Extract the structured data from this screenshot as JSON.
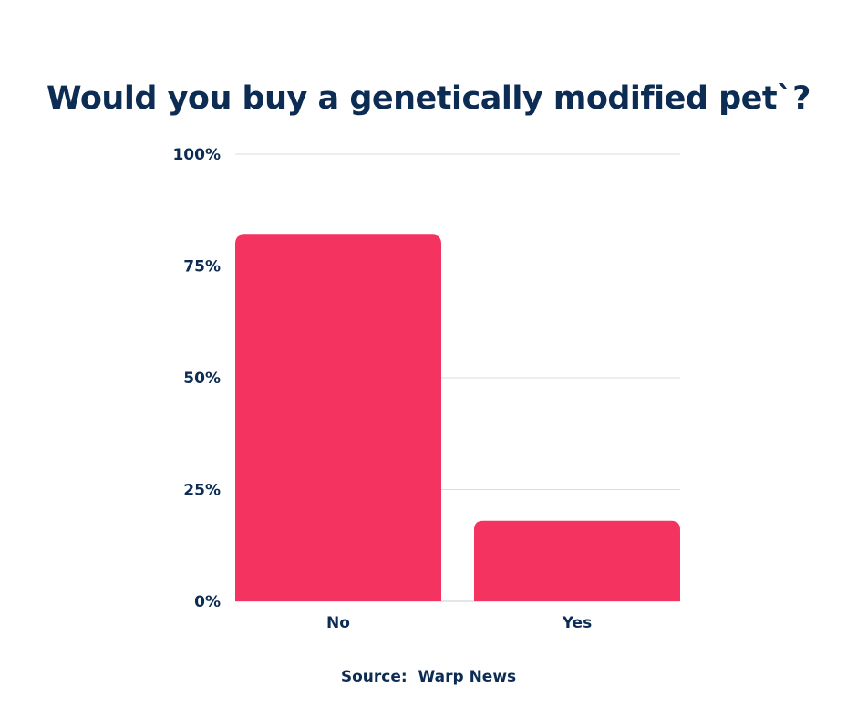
{
  "chart_data": {
    "type": "bar",
    "title": "Would you buy a genetically modified pet`?",
    "categories": [
      "No",
      "Yes"
    ],
    "values": [
      82,
      18
    ],
    "ylim": [
      0,
      100
    ],
    "yticks": [
      0,
      25,
      50,
      75,
      100
    ],
    "ytick_labels": [
      "0%",
      "25%",
      "50%",
      "75%",
      "100%"
    ],
    "xlabel": "",
    "ylabel": "",
    "grid": true,
    "bar_color": "#f43360",
    "grid_color": "#d9dde3",
    "text_color": "#0d2c54"
  },
  "source": {
    "text": "Source:  Warp News"
  }
}
